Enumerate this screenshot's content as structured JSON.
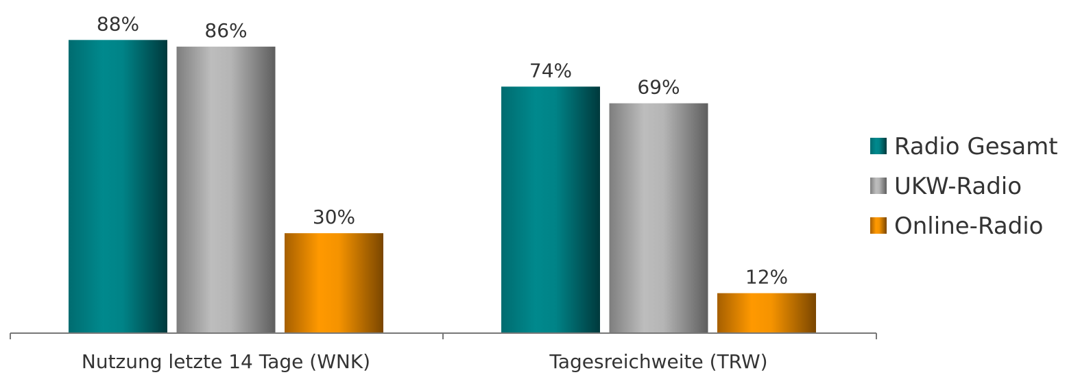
{
  "chart_data": {
    "type": "bar",
    "title": "",
    "xlabel": "",
    "ylabel": "",
    "categories": [
      "Nutzung letzte 14 Tage (WNK)",
      "Tagesreichweite (TRW)"
    ],
    "series": [
      {
        "name": "Radio Gesamt",
        "values": [
          88,
          74
        ],
        "labels": [
          "88%",
          "74%"
        ],
        "color": "#008B8F"
      },
      {
        "name": "UKW-Radio",
        "values": [
          86,
          69
        ],
        "labels": [
          "86%",
          "69%"
        ],
        "color": "#BEBEBE"
      },
      {
        "name": "Online-Radio",
        "values": [
          30,
          12
        ],
        "labels": [
          "30%",
          "12%"
        ],
        "color": "#FF9900"
      }
    ],
    "ylim": [
      0,
      100
    ],
    "grid": false,
    "legend": "right"
  }
}
